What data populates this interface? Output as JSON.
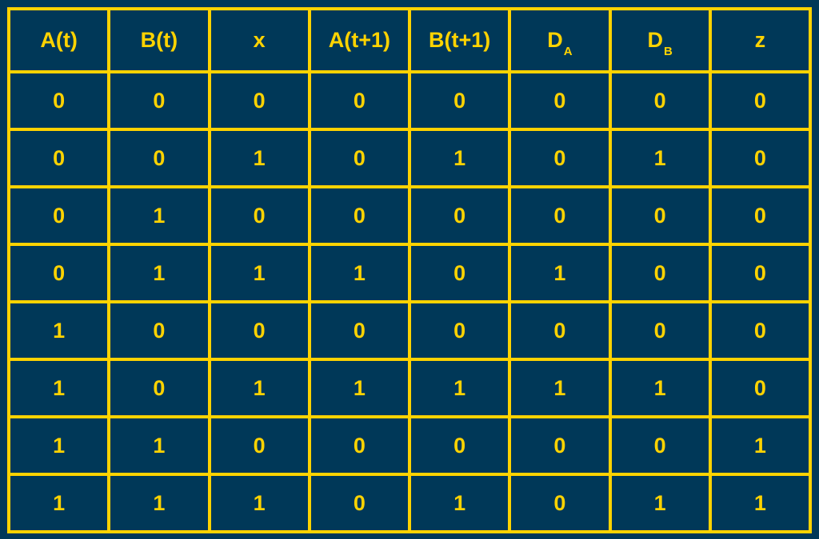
{
  "table": {
    "headers": [
      {
        "main": "A(t)",
        "sub": ""
      },
      {
        "main": "B(t)",
        "sub": ""
      },
      {
        "main": "x",
        "sub": ""
      },
      {
        "main": "A(t+1)",
        "sub": ""
      },
      {
        "main": "B(t+1)",
        "sub": ""
      },
      {
        "main": "D",
        "sub": "A"
      },
      {
        "main": "D",
        "sub": "B"
      },
      {
        "main": "z",
        "sub": ""
      }
    ],
    "rows": [
      [
        "0",
        "0",
        "0",
        "0",
        "0",
        "0",
        "0",
        "0"
      ],
      [
        "0",
        "0",
        "1",
        "0",
        "1",
        "0",
        "1",
        "0"
      ],
      [
        "0",
        "1",
        "0",
        "0",
        "0",
        "0",
        "0",
        "0"
      ],
      [
        "0",
        "1",
        "1",
        "1",
        "0",
        "1",
        "0",
        "0"
      ],
      [
        "1",
        "0",
        "0",
        "0",
        "0",
        "0",
        "0",
        "0"
      ],
      [
        "1",
        "0",
        "1",
        "1",
        "1",
        "1",
        "1",
        "0"
      ],
      [
        "1",
        "1",
        "0",
        "0",
        "0",
        "0",
        "0",
        "1"
      ],
      [
        "1",
        "1",
        "1",
        "0",
        "1",
        "0",
        "1",
        "1"
      ]
    ]
  },
  "colors": {
    "background": "#003858",
    "accent": "#FFD300"
  }
}
